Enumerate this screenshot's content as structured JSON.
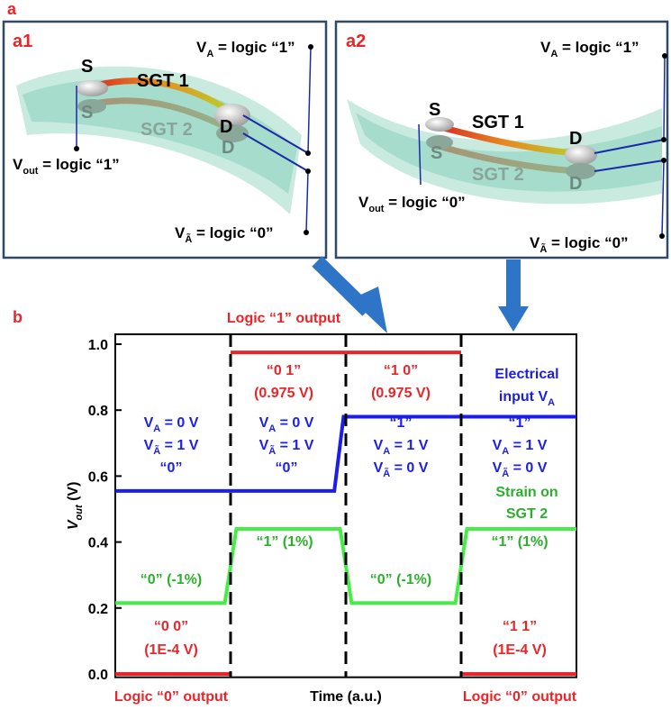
{
  "figure": {
    "label_a": "a",
    "label_b": "b"
  },
  "panels": [
    {
      "label": "a1",
      "source_1": "S",
      "channel_1": "SGT 1",
      "drain_1": "D",
      "source_2": "S",
      "channel_2": "SGT 2",
      "drain_2": "D",
      "va": {
        "symbol": "V",
        "sub": "A",
        "text": " = logic “1”"
      },
      "vout": {
        "symbol": "V",
        "sub": "out",
        "text": " = logic “1”"
      },
      "vabar": {
        "symbol": "V",
        "sub": "Ã",
        "text": " = logic “0”"
      }
    },
    {
      "label": "a2",
      "source_1": "S",
      "channel_1": "SGT 1",
      "drain_1": "D",
      "source_2": "S",
      "channel_2": "SGT 2",
      "drain_2": "D",
      "va": {
        "symbol": "V",
        "sub": "A",
        "text": " = logic “1”"
      },
      "vout": {
        "symbol": "V",
        "sub": "out",
        "text": " = logic “0”"
      },
      "vabar": {
        "symbol": "V",
        "sub": "Ã",
        "text": " = logic “0”"
      }
    }
  ],
  "chart_data": {
    "type": "line",
    "y_label": {
      "symbol": "V",
      "sub": "out",
      "text": " (V)"
    },
    "x_label": "Time (a.u.)",
    "xlim": [
      0,
      4
    ],
    "ylim": [
      -0.01,
      1.03
    ],
    "yticks": [
      {
        "value": 0,
        "label": "0.0"
      },
      0.2,
      0.4,
      0.6,
      0.8,
      {
        "value": 1,
        "label": "1.0"
      }
    ],
    "dividers": [
      1,
      2,
      3
    ],
    "series": [
      {
        "color": "#e8262a",
        "x": [
          0,
          1,
          1,
          1,
          3,
          3,
          3,
          4
        ],
        "values": [
          0.0001,
          0.0001,
          null,
          0.975,
          0.975,
          null,
          0.0001,
          0.0001
        ]
      },
      {
        "color": "#1a1ee8",
        "x": [
          0,
          1.9,
          1.98,
          4
        ],
        "values": [
          0.555,
          0.555,
          0.78,
          0.78
        ]
      },
      {
        "color": "#44ee44",
        "x": [
          0,
          0.95,
          1.05,
          1.95,
          2.05,
          2.95,
          3.05,
          4
        ],
        "values": [
          0.215,
          0.215,
          0.44,
          0.44,
          0.215,
          0.215,
          0.44,
          0.44
        ]
      }
    ],
    "annotations": [
      {
        "color": "#e8262a",
        "lines": [
          "Logic “1” output"
        ]
      },
      {
        "color": "#e8262a",
        "lines": [
          "“0 1”",
          "(0.975 V)"
        ]
      },
      {
        "color": "#e8262a",
        "lines": [
          "“1 0”",
          "(0.975 V)"
        ]
      },
      {
        "color": "#1a1ee8",
        "lines": [
          "Electrical",
          {
            "symbol": "input V",
            "sub": "A",
            "text": ""
          }
        ]
      },
      {
        "color": "#1a1ee8",
        "lines": [
          {
            "symbol": "V",
            "sub": "A",
            "text": " = 0 V"
          },
          {
            "symbol": "V",
            "sub": "Ã",
            "text": " = 1 V"
          },
          "“0”"
        ]
      },
      {
        "color": "#1a1ee8",
        "lines": [
          {
            "symbol": "V",
            "sub": "A",
            "text": " = 0 V"
          },
          {
            "symbol": "V",
            "sub": "Ã",
            "text": " = 1 V"
          },
          "“0”"
        ]
      },
      {
        "color": "#1a1ee8",
        "lines": [
          "“1”",
          {
            "symbol": "V",
            "sub": "A",
            "text": " = 1 V"
          },
          {
            "symbol": "V",
            "sub": "Ã",
            "text": " = 0 V"
          }
        ]
      },
      {
        "color": "#1a1ee8",
        "lines": [
          "“1”",
          {
            "symbol": "V",
            "sub": "A",
            "text": " = 1 V"
          },
          {
            "symbol": "V",
            "sub": "Ã",
            "text": " = 0 V"
          }
        ]
      },
      {
        "color": "#2cb02c",
        "lines": [
          "Strain on",
          "SGT 2"
        ]
      },
      {
        "color": "#2cb02c",
        "lines": [
          "“0” (-1%)"
        ]
      },
      {
        "color": "#2cb02c",
        "lines": [
          "“1” (1%)"
        ]
      },
      {
        "color": "#2cb02c",
        "lines": [
          "“0” (-1%)"
        ]
      },
      {
        "color": "#2cb02c",
        "lines": [
          "“1” (1%)"
        ]
      },
      {
        "color": "#e8262a",
        "lines": [
          "“0 0”",
          "(1E-4 V)"
        ]
      },
      {
        "color": "#e8262a",
        "lines": [
          "“1 1”",
          "(1E-4 V)"
        ]
      },
      {
        "color": "#e8262a",
        "lines": [
          "Logic “0” output"
        ]
      },
      {
        "color": "#e8262a",
        "lines": [
          "Logic “0” output"
        ]
      }
    ]
  }
}
